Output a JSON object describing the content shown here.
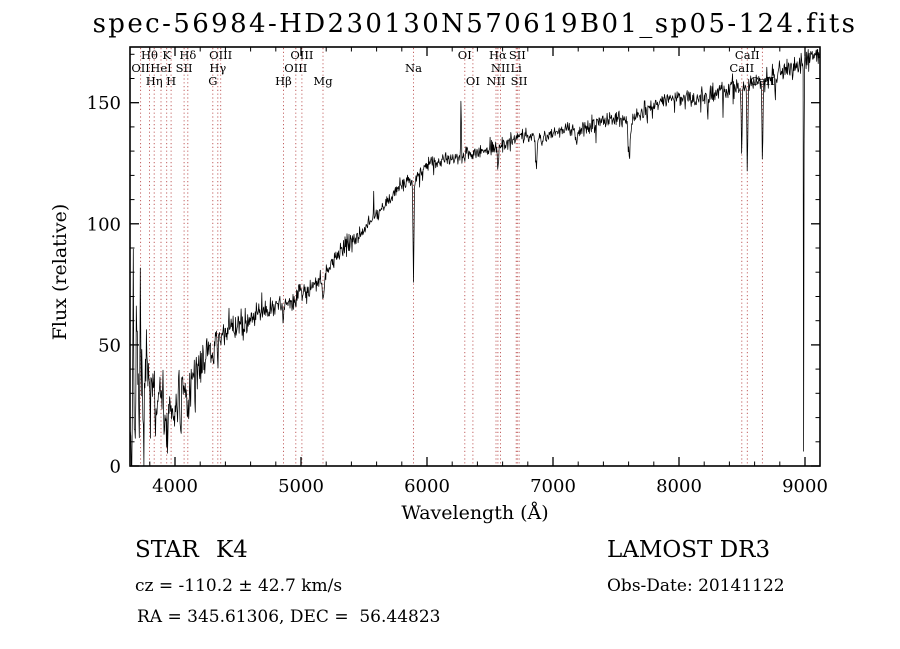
{
  "footer": {
    "class_label": "STAR",
    "subclass": "K4",
    "survey": "LAMOST DR3",
    "cz": "cz = -110.2 ± 42.7 km/s",
    "obs_date": "Obs-Date: 20141122",
    "ra_dec": "RA = 345.61306, DEC =  56.44823"
  },
  "chart_data": {
    "type": "line",
    "title": "spec-56984-HD230130N570619B01_sp05-124.fits",
    "xlabel": "Wavelength (Å)",
    "ylabel": "Flux (relative)",
    "xlim": [
      3643,
      9119
    ],
    "ylim": [
      0,
      173
    ],
    "xticks": [
      4000,
      5000,
      6000,
      7000,
      8000,
      9000
    ],
    "yticks": [
      0,
      50,
      100,
      150
    ],
    "x_minor_step": 200,
    "y_minor_step": 10,
    "grid": false,
    "line_color": "#000000",
    "feature_marker_color": "#b03333",
    "series_name": "flux",
    "continuum": {
      "wavelength": [
        3645,
        3660,
        3700,
        3750,
        3800,
        3850,
        3900,
        3950,
        4000,
        4060,
        4120,
        4200,
        4300,
        4400,
        4500,
        4600,
        4700,
        4800,
        4900,
        5000,
        5100,
        5200,
        5300,
        5400,
        5500,
        5600,
        5700,
        5800,
        5900,
        6000,
        6100,
        6200,
        6300,
        6400,
        6500,
        6600,
        6700,
        6800,
        6900,
        7000,
        7100,
        7200,
        7300,
        7400,
        7500,
        7600,
        7700,
        7800,
        7900,
        8000,
        8100,
        8200,
        8300,
        8400,
        8500,
        8600,
        8700,
        8800,
        8900,
        9000,
        9100,
        9119
      ],
      "flux": [
        18,
        30,
        36,
        33,
        32,
        30,
        28,
        26,
        27,
        28,
        33,
        42,
        50,
        55,
        58,
        61,
        64,
        66,
        68,
        71,
        75,
        80,
        88,
        93,
        98,
        104,
        110,
        116,
        119,
        124,
        126,
        127,
        128,
        129,
        131,
        133,
        135,
        137,
        135,
        138,
        139,
        139,
        141,
        143,
        144,
        142,
        146,
        149,
        151,
        152,
        151,
        153,
        155,
        156,
        157,
        158,
        160,
        162,
        164,
        167,
        170,
        171
      ]
    },
    "noise": {
      "seed": 7,
      "wavelength": [
        3643,
        3750,
        3850,
        3950,
        4050,
        4200,
        4400,
        4700,
        5000,
        5400,
        5800,
        6200,
        6600,
        7000,
        7400,
        7800,
        8200,
        8600,
        9000,
        9119
      ],
      "amp": [
        13,
        12,
        11,
        10,
        8,
        6,
        4.5,
        3.5,
        3,
        2.6,
        2.4,
        2.2,
        2.2,
        2.4,
        2.6,
        2.8,
        3,
        3.2,
        3.5,
        4
      ]
    },
    "absorption_features": [
      {
        "wavelength": 3934,
        "depth": 13,
        "sigma": 7
      },
      {
        "wavelength": 3969,
        "depth": 13,
        "sigma": 7
      },
      {
        "wavelength": 4102,
        "depth": 9,
        "sigma": 6
      },
      {
        "wavelength": 4300,
        "depth": 6,
        "sigma": 7
      },
      {
        "wavelength": 4340,
        "depth": 7,
        "sigma": 5
      },
      {
        "wavelength": 4861,
        "depth": 8,
        "sigma": 5
      },
      {
        "wavelength": 5175,
        "depth": 9,
        "sigma": 9
      },
      {
        "wavelength": 5893,
        "depth": 44,
        "sigma": 4
      },
      {
        "wavelength": 6563,
        "depth": 9,
        "sigma": 5
      },
      {
        "wavelength": 6867,
        "depth": 11,
        "sigma": 7
      },
      {
        "wavelength": 7186,
        "depth": 6,
        "sigma": 8
      },
      {
        "wavelength": 7605,
        "depth": 15,
        "sigma": 9
      },
      {
        "wavelength": 8227,
        "depth": 8,
        "sigma": 4
      },
      {
        "wavelength": 8498,
        "depth": 28,
        "sigma": 4
      },
      {
        "wavelength": 8542,
        "depth": 36,
        "sigma": 4
      },
      {
        "wavelength": 8662,
        "depth": 33,
        "sigma": 4
      }
    ],
    "spikes": [
      {
        "wavelength": 3655,
        "amp": -28,
        "sigma": 3
      },
      {
        "wavelength": 3668,
        "amp": 50,
        "sigma": 2.5
      },
      {
        "wavelength": 3681,
        "amp": -26,
        "sigma": 2.5
      },
      {
        "wavelength": 3695,
        "amp": 28,
        "sigma": 2
      },
      {
        "wavelength": 3712,
        "amp": -24,
        "sigma": 2.5
      },
      {
        "wavelength": 3726,
        "amp": 38,
        "sigma": 2
      },
      {
        "wavelength": 3745,
        "amp": -20,
        "sigma": 3
      },
      {
        "wavelength": 3775,
        "amp": 24,
        "sigma": 2
      },
      {
        "wavelength": 3805,
        "amp": -20,
        "sigma": 3
      },
      {
        "wavelength": 3845,
        "amp": -16,
        "sigma": 3
      },
      {
        "wavelength": 3880,
        "amp": 18,
        "sigma": 2
      },
      {
        "wavelength": 3915,
        "amp": -18,
        "sigma": 3
      },
      {
        "wavelength": 3995,
        "amp": -14,
        "sigma": 3
      },
      {
        "wavelength": 4045,
        "amp": -12,
        "sigma": 3
      },
      {
        "wavelength": 4160,
        "amp": -10,
        "sigma": 2.5
      },
      {
        "wavelength": 5577,
        "amp": 9,
        "sigma": 2
      },
      {
        "wavelength": 6270,
        "amp": 27,
        "sigma": 2.5
      },
      {
        "wavelength": 7340,
        "amp": -8,
        "sigma": 2
      },
      {
        "wavelength": 7750,
        "amp": -8,
        "sigma": 1.5
      },
      {
        "wavelength": 8350,
        "amp": -9,
        "sigma": 2
      },
      {
        "wavelength": 8430,
        "amp": -9,
        "sigma": 1.5
      },
      {
        "wavelength": 8765,
        "amp": -13,
        "sigma": 1.8
      },
      {
        "wavelength": 8990,
        "amp": -200,
        "sigma": 1.6
      }
    ],
    "spectral_lines": [
      {
        "label": "OII",
        "wavelength": 3727,
        "row": 2
      },
      {
        "label": "Hθ",
        "wavelength": 3798,
        "row": 1
      },
      {
        "label": "Hη",
        "wavelength": 3835,
        "row": 3
      },
      {
        "label": "HeI",
        "wavelength": 3889,
        "row": 2
      },
      {
        "label": "K",
        "wavelength": 3934,
        "row": 1
      },
      {
        "label": "H",
        "wavelength": 3969,
        "row": 3
      },
      {
        "label": "SII",
        "wavelength": 4072,
        "row": 2
      },
      {
        "label": "Hδ",
        "wavelength": 4102,
        "row": 1
      },
      {
        "label": "G",
        "wavelength": 4300,
        "row": 3
      },
      {
        "label": "Hγ",
        "wavelength": 4340,
        "row": 2
      },
      {
        "label": "OIII",
        "wavelength": 4363,
        "row": 1
      },
      {
        "label": "Hβ",
        "wavelength": 4861,
        "row": 3
      },
      {
        "label": "OIII",
        "wavelength": 4959,
        "row": 2
      },
      {
        "label": "OIII",
        "wavelength": 5007,
        "row": 1
      },
      {
        "label": "Mg",
        "wavelength": 5175,
        "row": 3
      },
      {
        "label": "Na",
        "wavelength": 5893,
        "row": 2
      },
      {
        "label": "OI",
        "wavelength": 6300,
        "row": 1
      },
      {
        "label": "OI",
        "wavelength": 6364,
        "row": 3
      },
      {
        "label": "NII",
        "wavelength": 6548,
        "row": 3
      },
      {
        "label": "Hα",
        "wavelength": 6563,
        "row": 1
      },
      {
        "label": "NII",
        "wavelength": 6583,
        "row": 2
      },
      {
        "label": "Li",
        "wavelength": 6708,
        "row": 2
      },
      {
        "label": "SII",
        "wavelength": 6717,
        "row": 1
      },
      {
        "label": "SII",
        "wavelength": 6731,
        "row": 3
      },
      {
        "label": "CaII",
        "wavelength": 8498,
        "row": 2
      },
      {
        "label": "CaII",
        "wavelength": 8542,
        "row": 1
      },
      {
        "label": "CaII",
        "wavelength": 8662,
        "row": 3
      }
    ]
  }
}
